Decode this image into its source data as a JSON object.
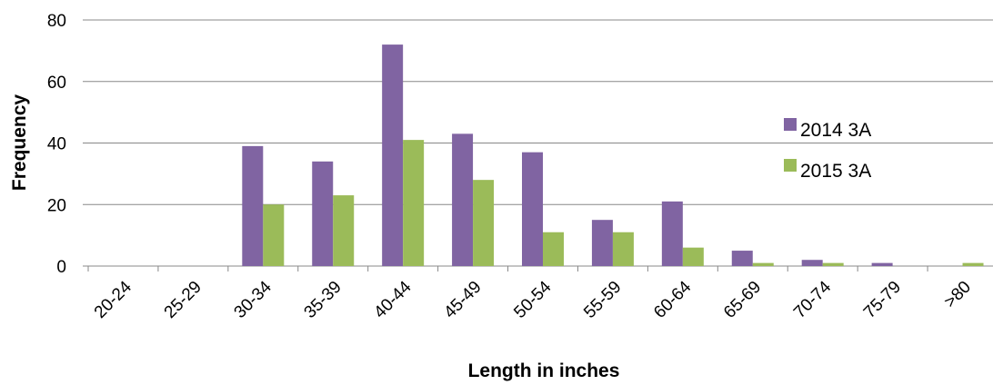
{
  "chart_data": {
    "type": "bar",
    "title": "",
    "xlabel": "Length in inches",
    "ylabel": "Frequency",
    "categories": [
      "20-24",
      "25-29",
      "30-34",
      "35-39",
      "40-44",
      "45-49",
      "50-54",
      "55-59",
      "60-64",
      "65-69",
      "70-74",
      "75-79",
      ">80"
    ],
    "series": [
      {
        "name": "2014 3A",
        "color": "#8064A2",
        "values": [
          0,
          0,
          39,
          34,
          72,
          43,
          37,
          15,
          21,
          5,
          2,
          1,
          0
        ]
      },
      {
        "name": "2015 3A",
        "color": "#9BBB59",
        "values": [
          0,
          0,
          20,
          23,
          41,
          28,
          11,
          11,
          6,
          1,
          1,
          0,
          1
        ]
      }
    ],
    "ylim": [
      0,
      80
    ],
    "yticks": [
      0,
      20,
      40,
      60,
      80
    ],
    "grid": true,
    "legend_position": "right"
  }
}
